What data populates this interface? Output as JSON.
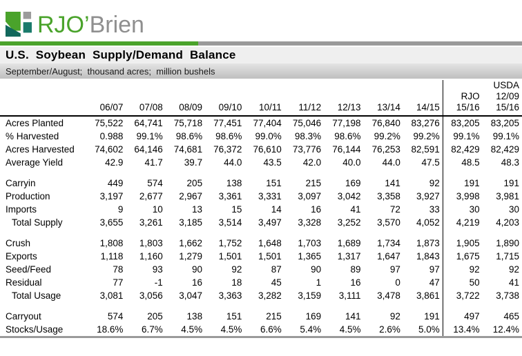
{
  "logo": {
    "text_primary": "RJO",
    "apostrophe": "’",
    "text_secondary": "Brien"
  },
  "colors": {
    "brand_green": "#4aa32b",
    "brand_teal": "#1a7a6b",
    "brand_teal_dark": "#12685c",
    "brand_gray": "#9b9b9b",
    "bar_gray": "#9a9a9a",
    "title_band_bg": "#efefef",
    "divider": "#000000"
  },
  "header": {
    "title": "U.S. Soybean Supply/Demand Balance",
    "subtitle": "September/August;  thousand acres;  million bushels"
  },
  "table": {
    "columns": [
      {
        "lines": [
          "06/07"
        ]
      },
      {
        "lines": [
          "07/08"
        ]
      },
      {
        "lines": [
          "08/09"
        ]
      },
      {
        "lines": [
          "09/10"
        ]
      },
      {
        "lines": [
          "10/11"
        ]
      },
      {
        "lines": [
          "11/12"
        ]
      },
      {
        "lines": [
          "12/13"
        ]
      },
      {
        "lines": [
          "13/14"
        ]
      },
      {
        "lines": [
          "14/15"
        ]
      },
      {
        "lines": [
          "RJO",
          "15/16"
        ],
        "divider_before": true
      },
      {
        "lines": [
          "USDA",
          "12/09",
          "15/16"
        ]
      }
    ],
    "sections": [
      {
        "rows": [
          {
            "label": "Acres Planted",
            "values": [
              "75,522",
              "64,741",
              "75,718",
              "77,451",
              "77,404",
              "75,046",
              "77,198",
              "76,840",
              "83,276",
              "83,205",
              "83,205"
            ]
          },
          {
            "label": "% Harvested",
            "values": [
              "0.988",
              "99.1%",
              "98.6%",
              "98.6%",
              "99.0%",
              "98.3%",
              "98.6%",
              "99.2%",
              "99.2%",
              "99.1%",
              "99.1%"
            ]
          },
          {
            "label": "Acres Harvested",
            "values": [
              "74,602",
              "64,146",
              "74,681",
              "76,372",
              "76,610",
              "73,776",
              "76,144",
              "76,253",
              "82,591",
              "82,429",
              "82,429"
            ]
          },
          {
            "label": "Average Yield",
            "values": [
              "42.9",
              "41.7",
              "39.7",
              "44.0",
              "43.5",
              "42.0",
              "40.0",
              "44.0",
              "47.5",
              "48.5",
              "48.3"
            ]
          }
        ]
      },
      {
        "rows": [
          {
            "label": "Carryin",
            "values": [
              "449",
              "574",
              "205",
              "138",
              "151",
              "215",
              "169",
              "141",
              "92",
              "191",
              "191"
            ]
          },
          {
            "label": "Production",
            "values": [
              "3,197",
              "2,677",
              "2,967",
              "3,361",
              "3,331",
              "3,097",
              "3,042",
              "3,358",
              "3,927",
              "3,998",
              "3,981"
            ]
          },
          {
            "label": "Imports",
            "values": [
              "9",
              "10",
              "13",
              "15",
              "14",
              "16",
              "41",
              "72",
              "33",
              "30",
              "30"
            ]
          },
          {
            "label": "Total Supply",
            "indent": true,
            "values": [
              "3,655",
              "3,261",
              "3,185",
              "3,514",
              "3,497",
              "3,328",
              "3,252",
              "3,570",
              "4,052",
              "4,219",
              "4,203"
            ]
          }
        ]
      },
      {
        "rows": [
          {
            "label": "Crush",
            "values": [
              "1,808",
              "1,803",
              "1,662",
              "1,752",
              "1,648",
              "1,703",
              "1,689",
              "1,734",
              "1,873",
              "1,905",
              "1,890"
            ]
          },
          {
            "label": "Exports",
            "values": [
              "1,118",
              "1,160",
              "1,279",
              "1,501",
              "1,501",
              "1,365",
              "1,317",
              "1,647",
              "1,843",
              "1,675",
              "1,715"
            ]
          },
          {
            "label": "Seed/Feed",
            "values": [
              "78",
              "93",
              "90",
              "92",
              "87",
              "90",
              "89",
              "97",
              "97",
              "92",
              "92"
            ]
          },
          {
            "label": "Residual",
            "values": [
              "77",
              "-1",
              "16",
              "18",
              "45",
              "1",
              "16",
              "0",
              "47",
              "50",
              "41"
            ]
          },
          {
            "label": "Total Usage",
            "indent": true,
            "values": [
              "3,081",
              "3,056",
              "3,047",
              "3,363",
              "3,282",
              "3,159",
              "3,111",
              "3,478",
              "3,861",
              "3,722",
              "3,738"
            ]
          }
        ]
      },
      {
        "rows": [
          {
            "label": "Carryout",
            "values": [
              "574",
              "205",
              "138",
              "151",
              "215",
              "169",
              "141",
              "92",
              "191",
              "497",
              "465"
            ]
          },
          {
            "label": "Stocks/Usage",
            "values": [
              "18.6%",
              "6.7%",
              "4.5%",
              "4.5%",
              "6.6%",
              "5.4%",
              "4.5%",
              "2.6%",
              "5.0%",
              "13.4%",
              "12.4%"
            ]
          }
        ]
      }
    ]
  }
}
